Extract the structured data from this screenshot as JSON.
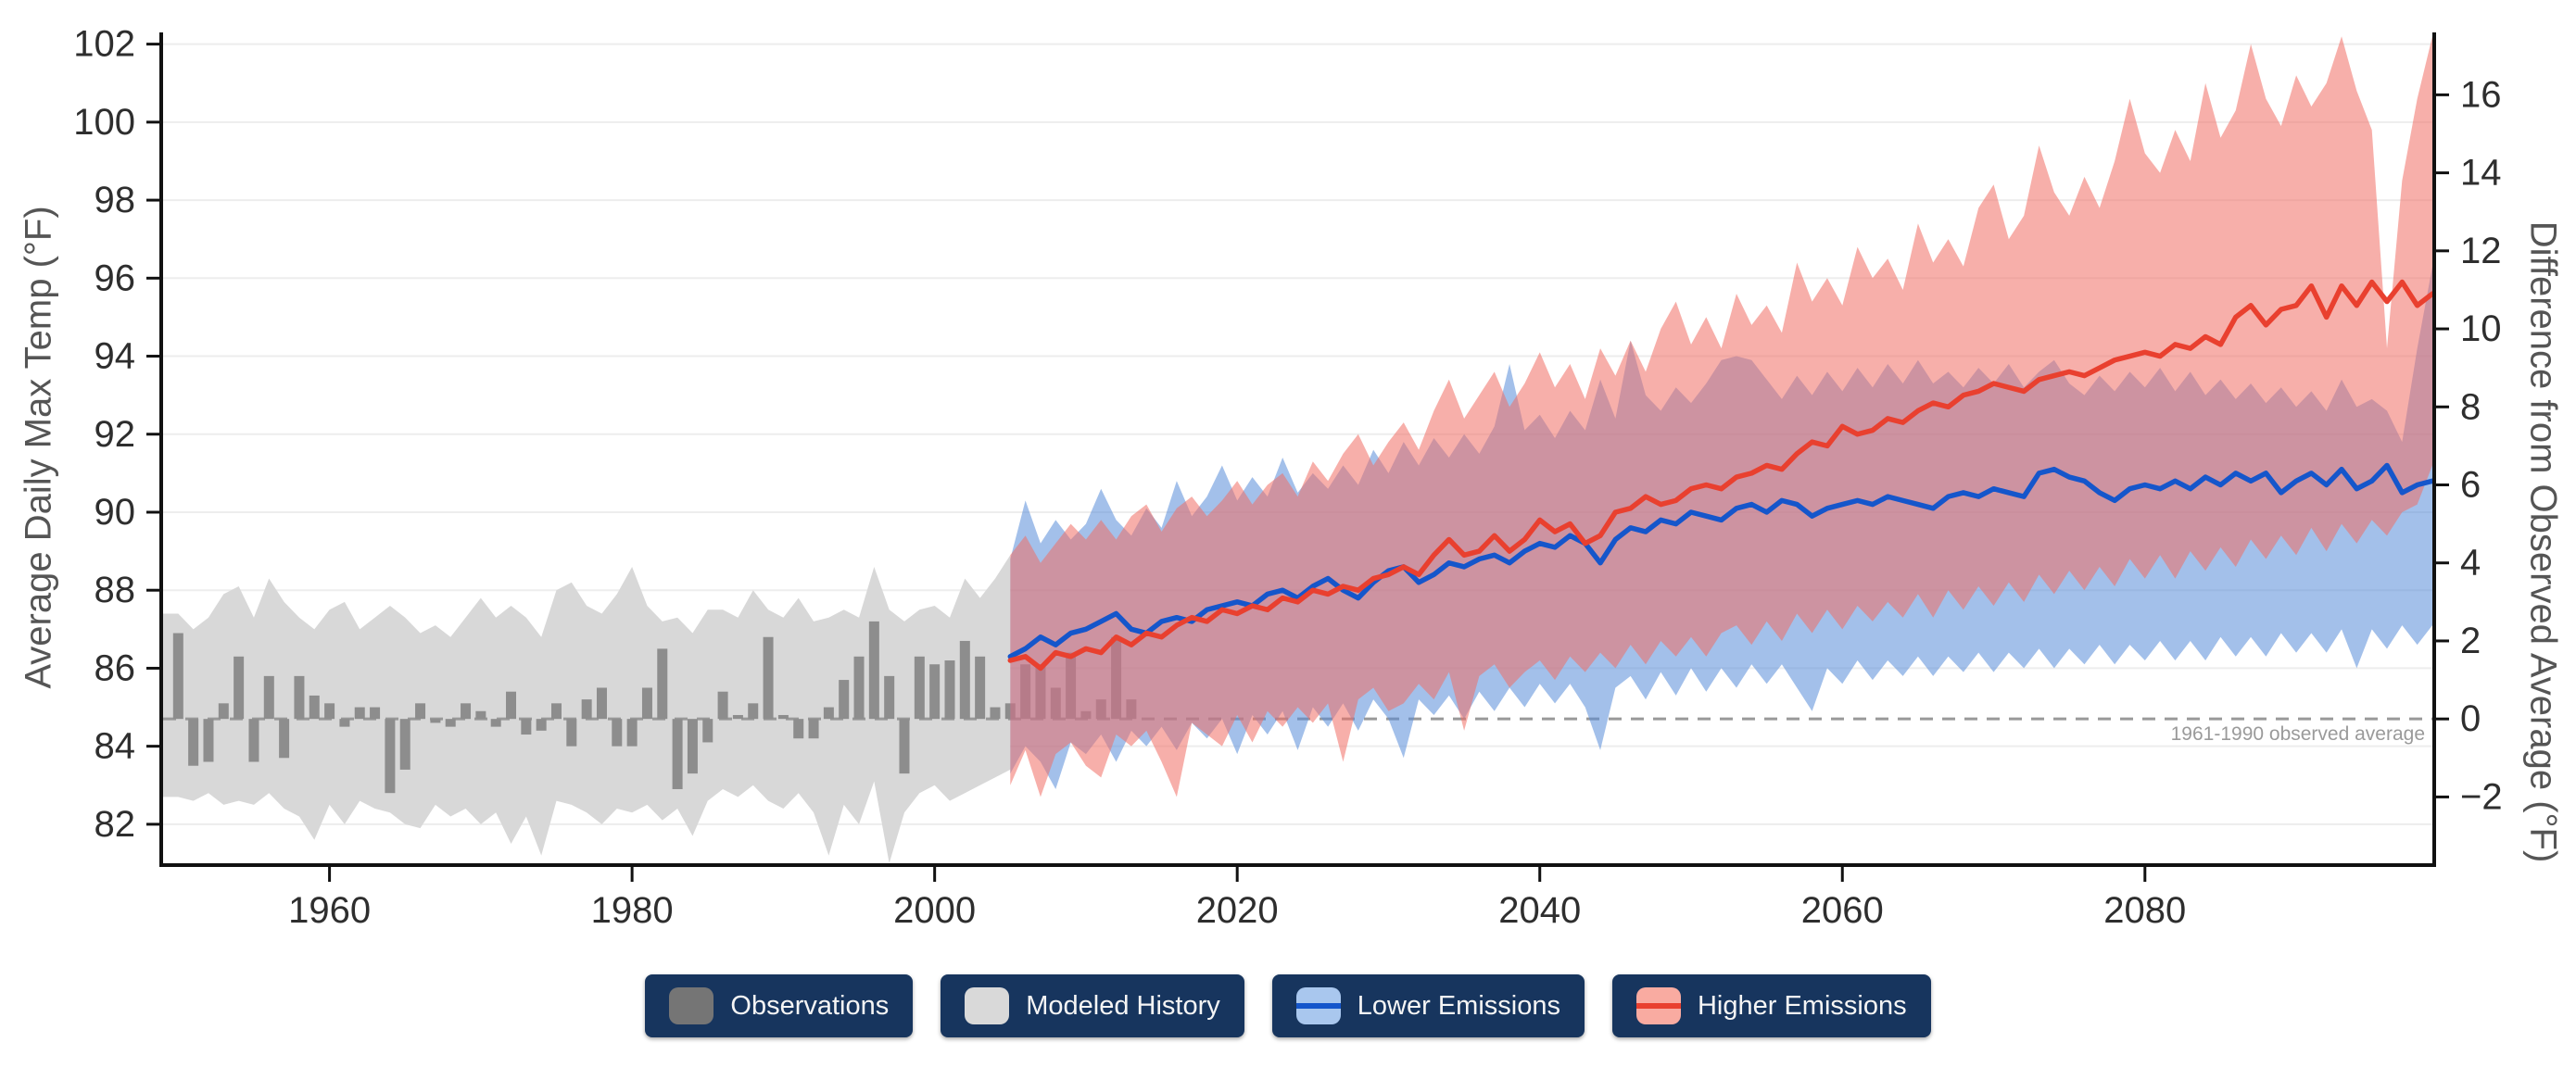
{
  "legend": {
    "button_bg": "#17355e",
    "items": [
      {
        "label": "Observations",
        "swatch": "#757575",
        "line": null
      },
      {
        "label": "Modeled History",
        "swatch": "#d9d9d9",
        "line": null
      },
      {
        "label": "Lower Emissions",
        "swatch": "#a9c7ee",
        "line": "#1556cb"
      },
      {
        "label": "Higher Emissions",
        "swatch": "#f9aba1",
        "line": "#e9402f"
      }
    ]
  },
  "chart_data": {
    "type": "area",
    "x_axis": {
      "range": [
        1949,
        2099
      ],
      "ticks": [
        1960,
        1980,
        2000,
        2020,
        2040,
        2060,
        2080
      ]
    },
    "y_left": {
      "label": "Average Daily Max Temp (°F)",
      "range": [
        81,
        102.3
      ],
      "ticks": [
        82,
        84,
        86,
        88,
        90,
        92,
        94,
        96,
        98,
        100,
        102
      ]
    },
    "y_right": {
      "label": "Difference from Observed Average (°F)",
      "ticks": [
        -2,
        0,
        2,
        4,
        6,
        8,
        10,
        12,
        14,
        16
      ]
    },
    "baseline": {
      "value": 84.7,
      "label": "1961-1990 observed average"
    },
    "style": {
      "grid": "#ededed",
      "spine": "#111111",
      "tick_label": "#2e2e2e",
      "obs_bar": "#8d8d8d",
      "hist_band": "#d8d8d8",
      "blue_band": "rgba(88,140,216,0.55)",
      "red_band": "rgba(240,110,100,0.55)",
      "blue_line": "#1556cb",
      "red_line": "#e9402f",
      "baseline_color": "#999999"
    },
    "series": {
      "observations": {
        "name": "Observations",
        "start_year": 1950,
        "values": [
          86.9,
          83.5,
          83.6,
          85.1,
          86.3,
          83.6,
          85.8,
          83.7,
          85.8,
          85.3,
          85.1,
          84.5,
          85.0,
          85.0,
          82.8,
          83.4,
          85.1,
          84.6,
          84.5,
          85.1,
          84.9,
          84.5,
          85.4,
          84.3,
          84.4,
          85.1,
          84.0,
          85.2,
          85.5,
          84.0,
          84.0,
          85.5,
          86.5,
          82.9,
          83.3,
          84.1,
          85.4,
          84.8,
          85.1,
          86.8,
          84.8,
          84.2,
          84.2,
          85.0,
          85.7,
          86.3,
          87.2,
          85.8,
          83.3,
          86.3,
          86.1,
          86.2,
          86.7,
          86.3,
          85.0,
          85.1,
          86.1,
          86.1,
          85.5,
          86.4,
          84.9,
          85.2,
          86.8,
          85.2
        ]
      },
      "modeled_history": {
        "name": "Modeled History",
        "start_year": 1950,
        "upper": [
          87.4,
          87.0,
          87.3,
          87.9,
          88.1,
          87.3,
          88.3,
          87.7,
          87.3,
          87.0,
          87.5,
          87.7,
          87.0,
          87.3,
          87.6,
          87.3,
          86.9,
          87.1,
          86.8,
          87.3,
          87.8,
          87.3,
          87.6,
          87.3,
          86.8,
          88.0,
          88.2,
          87.6,
          87.4,
          87.9,
          88.6,
          87.6,
          87.2,
          87.3,
          86.9,
          87.5,
          87.5,
          87.3,
          88.0,
          87.5,
          87.3,
          87.8,
          87.2,
          87.3,
          87.5,
          87.3,
          88.6,
          87.5,
          87.2,
          87.5,
          87.6,
          87.3,
          88.3,
          87.8,
          88.3,
          88.9
        ],
        "lower": [
          82.7,
          82.6,
          82.8,
          82.5,
          82.6,
          82.5,
          82.8,
          82.4,
          82.2,
          81.6,
          82.5,
          82.0,
          82.6,
          82.4,
          82.3,
          82.0,
          81.9,
          82.5,
          82.2,
          82.4,
          82.0,
          82.3,
          81.5,
          82.2,
          81.2,
          82.6,
          82.5,
          82.3,
          82.0,
          82.4,
          82.3,
          82.5,
          82.1,
          82.4,
          81.7,
          82.6,
          82.9,
          82.7,
          83.0,
          82.6,
          82.4,
          82.8,
          82.3,
          81.2,
          82.5,
          82.0,
          83.1,
          81.0,
          82.3,
          82.8,
          83.0,
          82.6,
          82.8,
          83.0,
          83.2,
          83.4
        ]
      },
      "lower_emissions": {
        "name": "Lower Emissions",
        "start_year": 2005,
        "median": [
          86.3,
          86.5,
          86.8,
          86.6,
          86.9,
          87.0,
          87.2,
          87.4,
          87.0,
          86.9,
          87.2,
          87.3,
          87.2,
          87.5,
          87.6,
          87.7,
          87.6,
          87.9,
          88.0,
          87.8,
          88.1,
          88.3,
          88.0,
          87.8,
          88.2,
          88.5,
          88.6,
          88.2,
          88.4,
          88.7,
          88.6,
          88.8,
          88.9,
          88.7,
          89.0,
          89.2,
          89.1,
          89.4,
          89.2,
          88.7,
          89.3,
          89.6,
          89.5,
          89.8,
          89.7,
          90.0,
          89.9,
          89.8,
          90.1,
          90.2,
          90.0,
          90.3,
          90.2,
          89.9,
          90.1,
          90.2,
          90.3,
          90.2,
          90.4,
          90.3,
          90.2,
          90.1,
          90.4,
          90.5,
          90.4,
          90.6,
          90.5,
          90.4,
          91.0,
          91.1,
          90.9,
          90.8,
          90.5,
          90.3,
          90.6,
          90.7,
          90.6,
          90.8,
          90.6,
          90.9,
          90.7,
          91.0,
          90.8,
          91.0,
          90.5,
          90.8,
          91.0,
          90.7,
          91.1,
          90.6,
          90.8,
          91.2,
          90.5,
          90.7,
          90.8
        ],
        "upper": [
          88.8,
          90.3,
          89.2,
          89.8,
          89.3,
          89.7,
          90.6,
          89.8,
          89.4,
          90.1,
          89.6,
          90.8,
          89.9,
          90.4,
          91.2,
          90.3,
          90.9,
          90.4,
          91.4,
          90.5,
          91.0,
          90.6,
          91.2,
          90.7,
          91.6,
          91.0,
          91.8,
          91.2,
          91.9,
          91.4,
          92.0,
          91.5,
          92.2,
          93.8,
          92.1,
          92.5,
          91.9,
          92.6,
          92.1,
          93.4,
          92.4,
          94.4,
          93.0,
          92.6,
          93.2,
          92.8,
          93.3,
          93.9,
          94.0,
          93.9,
          93.4,
          92.9,
          93.5,
          93.0,
          93.6,
          93.1,
          93.7,
          93.2,
          93.8,
          93.3,
          93.9,
          93.3,
          93.6,
          93.2,
          93.7,
          93.3,
          93.8,
          93.2,
          93.6,
          93.9,
          93.3,
          93.0,
          93.5,
          93.1,
          93.6,
          93.2,
          93.7,
          93.1,
          93.6,
          93.0,
          93.4,
          92.9,
          93.3,
          92.8,
          93.2,
          92.7,
          93.1,
          92.6,
          93.4,
          92.7,
          92.9,
          92.6,
          91.8,
          94.2,
          96.3
        ],
        "lower": [
          83.3,
          84.0,
          83.6,
          82.9,
          84.1,
          83.8,
          84.3,
          83.6,
          84.4,
          84.0,
          84.5,
          83.9,
          84.6,
          84.2,
          84.7,
          83.8,
          84.8,
          84.3,
          84.9,
          83.9,
          85.0,
          84.5,
          85.1,
          84.4,
          85.2,
          84.7,
          83.7,
          85.2,
          84.8,
          85.3,
          84.7,
          85.4,
          84.9,
          85.5,
          85.0,
          85.6,
          85.1,
          85.6,
          85.0,
          83.9,
          85.5,
          85.8,
          85.2,
          85.9,
          85.3,
          86.0,
          85.4,
          86.0,
          85.5,
          86.1,
          85.6,
          86.1,
          85.5,
          84.9,
          86.0,
          85.6,
          86.2,
          85.7,
          86.2,
          85.8,
          86.3,
          85.8,
          86.3,
          85.9,
          86.4,
          85.9,
          86.4,
          86.0,
          86.5,
          86.0,
          86.5,
          86.1,
          86.6,
          86.1,
          86.6,
          86.2,
          86.7,
          86.2,
          86.7,
          86.2,
          86.8,
          86.3,
          86.8,
          86.3,
          86.9,
          86.4,
          86.9,
          86.4,
          87.0,
          86.0,
          87.0,
          86.5,
          87.1,
          86.6,
          87.1
        ]
      },
      "higher_emissions": {
        "name": "Higher Emissions",
        "start_year": 2005,
        "median": [
          86.2,
          86.3,
          86.0,
          86.4,
          86.3,
          86.5,
          86.4,
          86.8,
          86.6,
          86.9,
          86.8,
          87.1,
          87.3,
          87.2,
          87.5,
          87.4,
          87.6,
          87.5,
          87.8,
          87.7,
          88.0,
          87.9,
          88.1,
          88.0,
          88.3,
          88.4,
          88.6,
          88.4,
          88.9,
          89.3,
          88.9,
          89.0,
          89.4,
          89.0,
          89.3,
          89.8,
          89.5,
          89.7,
          89.2,
          89.4,
          90.0,
          90.1,
          90.4,
          90.2,
          90.3,
          90.6,
          90.7,
          90.6,
          90.9,
          91.0,
          91.2,
          91.1,
          91.5,
          91.8,
          91.7,
          92.2,
          92.0,
          92.1,
          92.4,
          92.3,
          92.6,
          92.8,
          92.7,
          93.0,
          93.1,
          93.3,
          93.2,
          93.1,
          93.4,
          93.5,
          93.6,
          93.5,
          93.7,
          93.9,
          94.0,
          94.1,
          94.0,
          94.3,
          94.2,
          94.5,
          94.3,
          95.0,
          95.3,
          94.8,
          95.2,
          95.3,
          95.8,
          95.0,
          95.8,
          95.3,
          95.9,
          95.4,
          95.9,
          95.3,
          95.6
        ],
        "upper": [
          88.9,
          89.4,
          88.7,
          89.2,
          89.7,
          89.3,
          89.8,
          89.3,
          89.9,
          90.2,
          89.5,
          90.1,
          90.4,
          89.9,
          90.3,
          90.8,
          90.2,
          90.7,
          91.0,
          90.4,
          91.3,
          90.8,
          91.5,
          92.0,
          91.2,
          91.8,
          92.3,
          91.6,
          92.6,
          93.4,
          92.4,
          93.0,
          93.6,
          92.7,
          93.3,
          94.1,
          93.2,
          93.8,
          92.9,
          94.2,
          93.5,
          94.4,
          93.6,
          94.7,
          95.4,
          94.3,
          95.0,
          94.2,
          95.6,
          94.8,
          95.3,
          94.6,
          96.4,
          95.4,
          96.0,
          95.3,
          96.8,
          96.0,
          96.5,
          95.7,
          97.4,
          96.4,
          97.0,
          96.3,
          97.8,
          98.4,
          97.0,
          97.6,
          99.4,
          98.2,
          97.6,
          98.6,
          97.8,
          99.0,
          100.6,
          99.2,
          98.7,
          99.8,
          99.0,
          101.0,
          99.6,
          100.3,
          102.0,
          100.6,
          99.9,
          101.2,
          100.4,
          101.0,
          102.2,
          100.8,
          99.8,
          94.2,
          98.5,
          100.6,
          102.2
        ],
        "lower": [
          83.0,
          83.9,
          82.7,
          83.8,
          84.1,
          83.5,
          83.2,
          84.3,
          84.0,
          84.4,
          83.6,
          82.7,
          84.6,
          84.3,
          84.0,
          84.8,
          84.1,
          84.9,
          84.5,
          85.0,
          84.6,
          85.1,
          83.6,
          85.2,
          85.5,
          84.9,
          85.1,
          85.6,
          85.2,
          85.9,
          84.4,
          85.8,
          86.1,
          85.5,
          85.9,
          86.2,
          85.7,
          86.3,
          85.9,
          86.4,
          86.0,
          86.6,
          86.1,
          86.7,
          86.3,
          86.8,
          86.3,
          86.9,
          87.1,
          86.6,
          87.2,
          86.7,
          87.4,
          86.9,
          87.5,
          87.0,
          87.6,
          87.2,
          87.7,
          87.3,
          87.9,
          87.3,
          88.0,
          87.5,
          88.1,
          87.6,
          88.2,
          87.7,
          88.4,
          87.9,
          88.5,
          88.0,
          88.6,
          88.1,
          88.8,
          88.3,
          88.9,
          88.3,
          89.0,
          88.5,
          89.1,
          88.6,
          89.3,
          88.8,
          89.4,
          88.9,
          89.6,
          89.0,
          89.7,
          89.2,
          89.8,
          89.4,
          90.0,
          90.2,
          91.2
        ]
      }
    }
  }
}
